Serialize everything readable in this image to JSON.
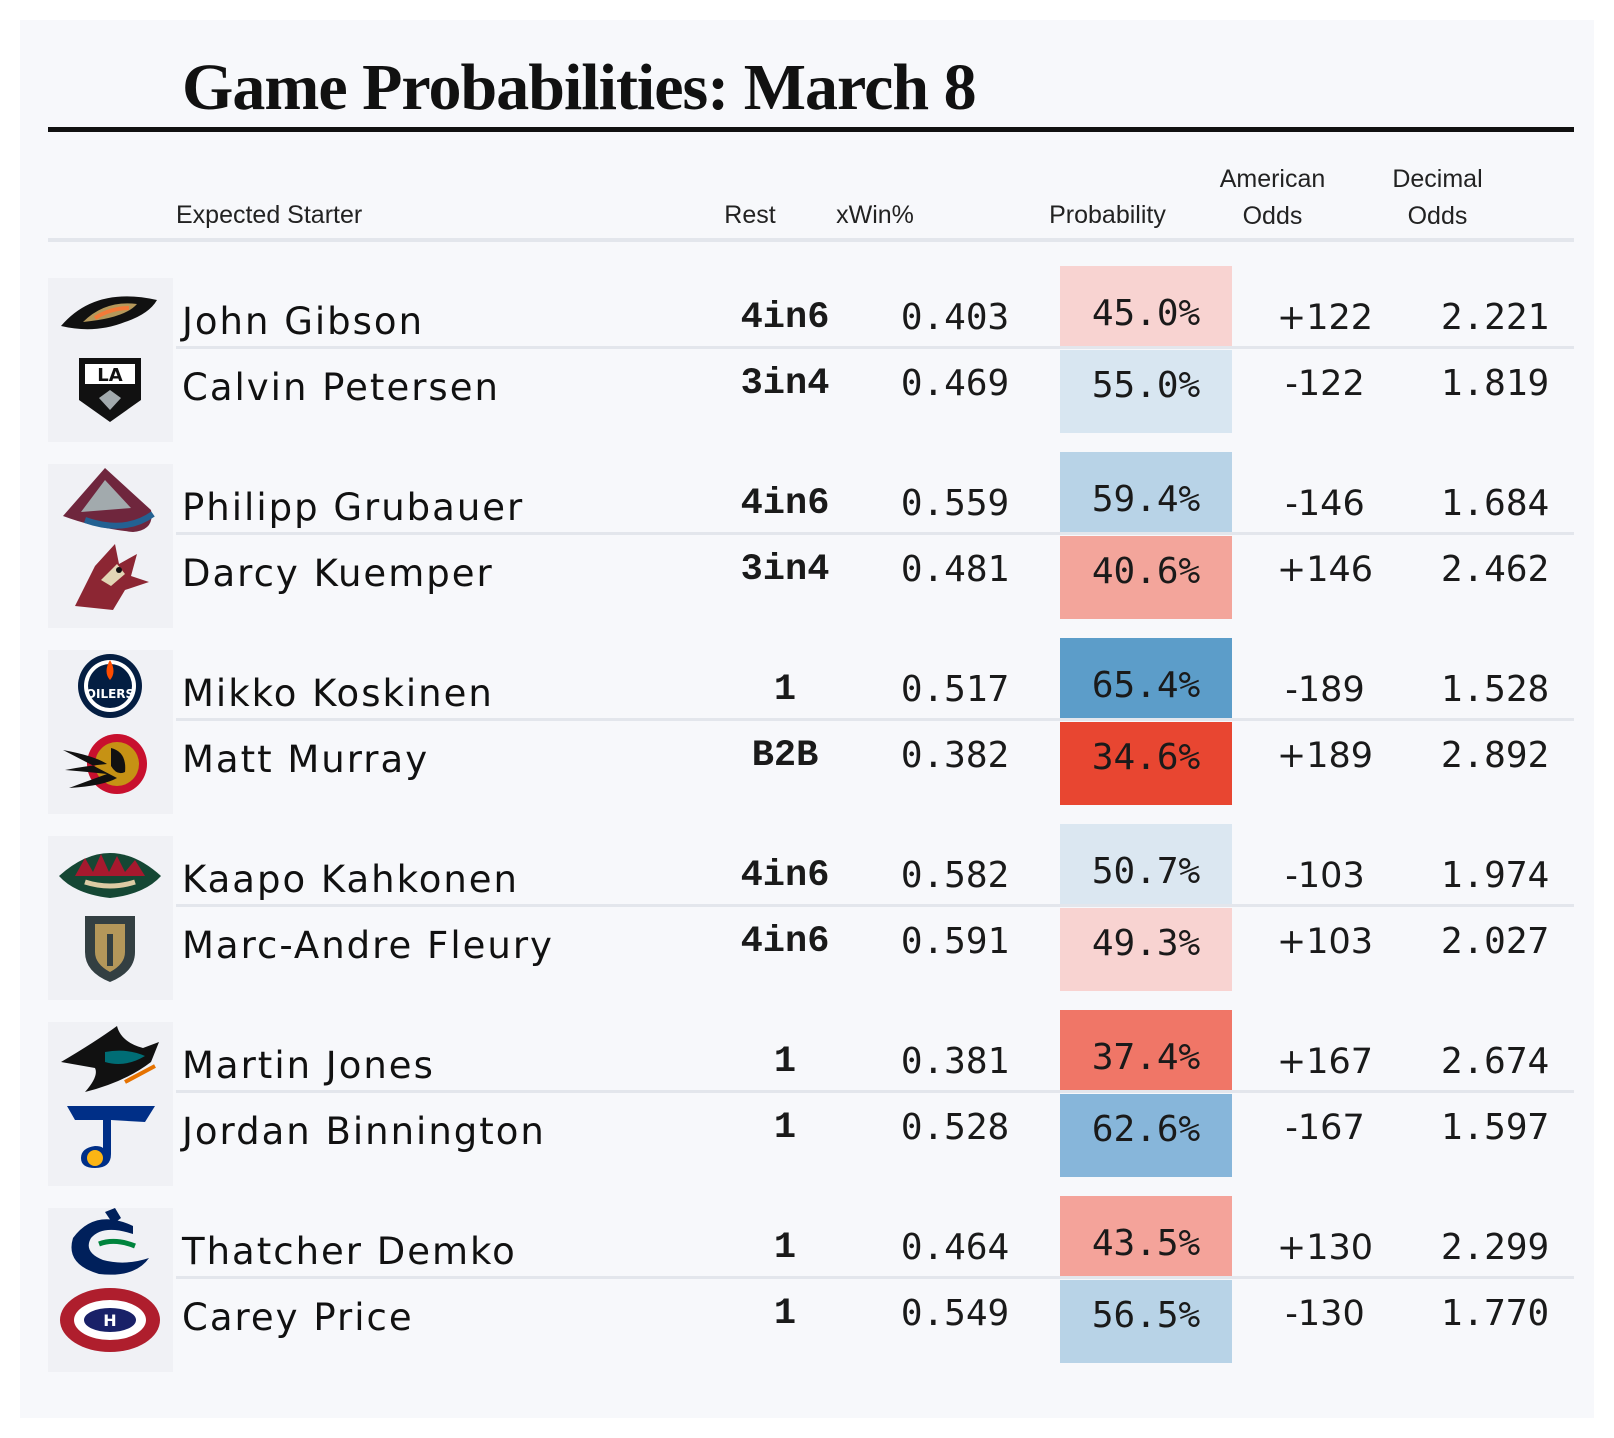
{
  "title": "Game Probabilities: March 8",
  "headers": {
    "starter": "Expected Starter",
    "rest": "Rest",
    "xwin": "xWin%",
    "probability": "Probability",
    "american_1": "American",
    "american_2": "Odds",
    "decimal_1": "Decimal",
    "decimal_2": "Odds"
  },
  "colors": {
    "title_rule": "#111111",
    "panel": "#f7f8fb"
  },
  "games": [
    {
      "teams": [
        {
          "logo": "ducks-logo-icon",
          "name": "John Gibson",
          "rest": "4in6",
          "xwin": "0.403",
          "prob": "45.0%",
          "prob_value": 45.0,
          "american": "+122",
          "decimal": "2.221",
          "prob_color": "#f8d3d1"
        },
        {
          "logo": "kings-logo-icon",
          "name": "Calvin Petersen",
          "rest": "3in4",
          "xwin": "0.469",
          "prob": "55.0%",
          "prob_value": 55.0,
          "american": "-122",
          "decimal": "1.819",
          "prob_color": "#d8e6f1"
        }
      ]
    },
    {
      "teams": [
        {
          "logo": "avalanche-logo-icon",
          "name": "Philipp Grubauer",
          "rest": "4in6",
          "xwin": "0.559",
          "prob": "59.4%",
          "prob_value": 59.4,
          "american": "-146",
          "decimal": "1.684",
          "prob_color": "#b8d3e7"
        },
        {
          "logo": "coyotes-logo-icon",
          "name": "Darcy Kuemper",
          "rest": "3in4",
          "xwin": "0.481",
          "prob": "40.6%",
          "prob_value": 40.6,
          "american": "+146",
          "decimal": "2.462",
          "prob_color": "#f3a59b"
        }
      ]
    },
    {
      "teams": [
        {
          "logo": "oilers-logo-icon",
          "name": "Mikko Koskinen",
          "rest": "1",
          "xwin": "0.517",
          "prob": "65.4%",
          "prob_value": 65.4,
          "american": "-189",
          "decimal": "1.528",
          "prob_color": "#5c9dc9"
        },
        {
          "logo": "senators-logo-icon",
          "name": "Matt Murray",
          "rest": "B2B",
          "xwin": "0.382",
          "prob": "34.6%",
          "prob_value": 34.6,
          "american": "+189",
          "decimal": "2.892",
          "prob_color": "#e84631"
        }
      ]
    },
    {
      "teams": [
        {
          "logo": "wild-logo-icon",
          "name": "Kaapo Kahkonen",
          "rest": "4in6",
          "xwin": "0.582",
          "prob": "50.7%",
          "prob_value": 50.7,
          "american": "-103",
          "decimal": "1.974",
          "prob_color": "#dbe7f1"
        },
        {
          "logo": "golden-knights-logo-icon",
          "name": "Marc-Andre Fleury",
          "rest": "4in6",
          "xwin": "0.591",
          "prob": "49.3%",
          "prob_value": 49.3,
          "american": "+103",
          "decimal": "2.027",
          "prob_color": "#f8d3d1"
        }
      ]
    },
    {
      "teams": [
        {
          "logo": "sharks-logo-icon",
          "name": "Martin Jones",
          "rest": "1",
          "xwin": "0.381",
          "prob": "37.4%",
          "prob_value": 37.4,
          "american": "+167",
          "decimal": "2.674",
          "prob_color": "#f07667"
        },
        {
          "logo": "blues-logo-icon",
          "name": "Jordan Binnington",
          "rest": "1",
          "xwin": "0.528",
          "prob": "62.6%",
          "prob_value": 62.6,
          "american": "-167",
          "decimal": "1.597",
          "prob_color": "#87b6da"
        }
      ]
    },
    {
      "teams": [
        {
          "logo": "canucks-logo-icon",
          "name": "Thatcher Demko",
          "rest": "1",
          "xwin": "0.464",
          "prob": "43.5%",
          "prob_value": 43.5,
          "american": "+130",
          "decimal": "2.299",
          "prob_color": "#f4a39a"
        },
        {
          "logo": "canadiens-logo-icon",
          "name": "Carey Price",
          "rest": "1",
          "xwin": "0.549",
          "prob": "56.5%",
          "prob_value": 56.5,
          "american": "-130",
          "decimal": "1.770",
          "prob_color": "#b8d3e7"
        }
      ]
    }
  ]
}
